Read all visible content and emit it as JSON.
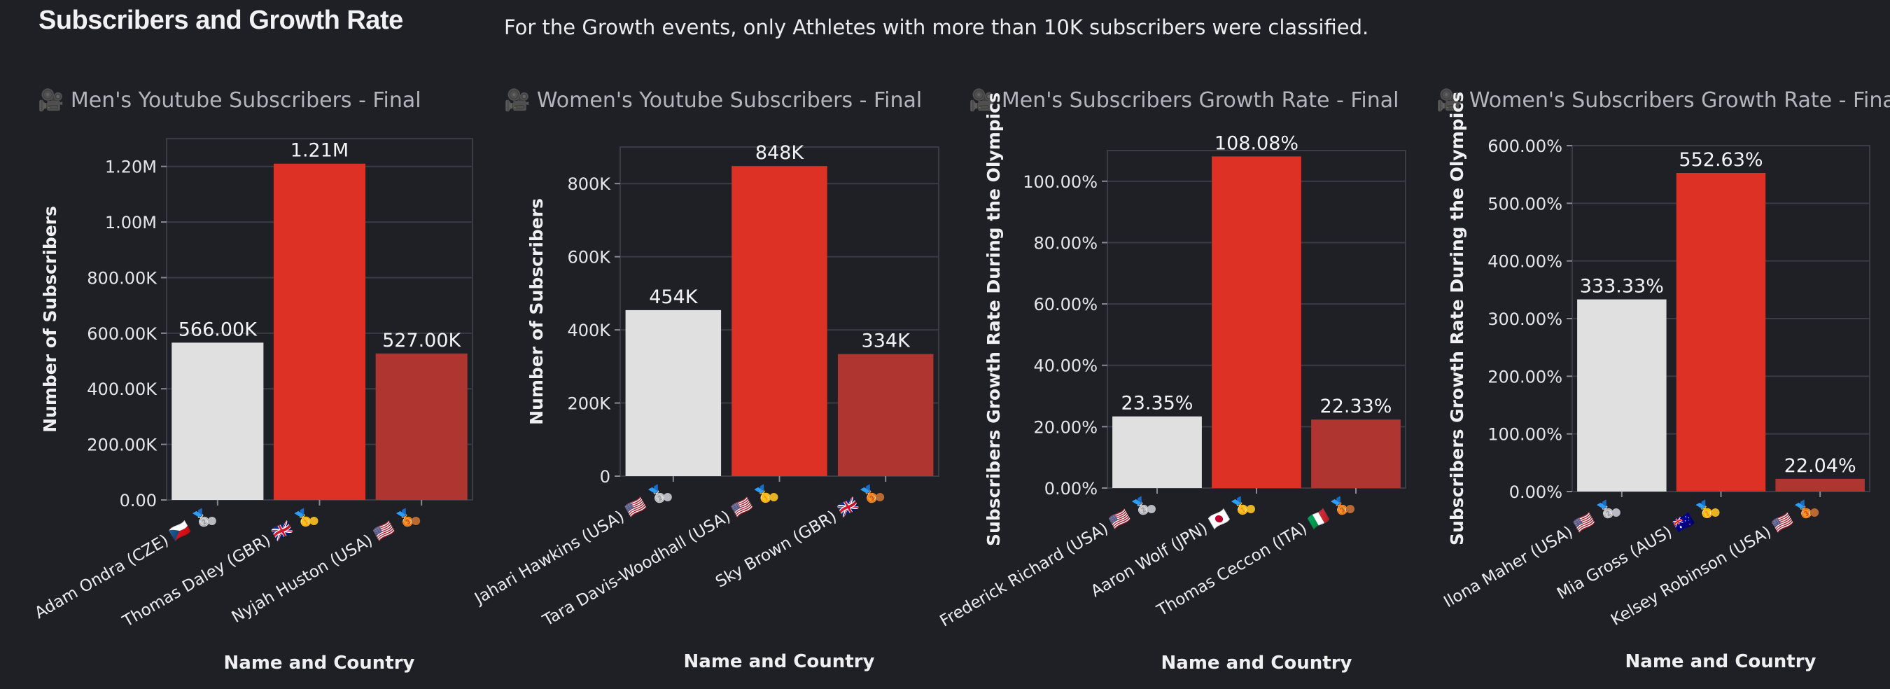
{
  "page": {
    "title": "Subscribers and Growth Rate",
    "note": "For the Growth events, only Athletes with more than 10K subscribers were classified."
  },
  "icons": {
    "panel_icon": "movie-camera-icon",
    "gold": "gold-medal-icon",
    "silver": "silver-medal-icon",
    "bronze": "bronze-medal-icon"
  },
  "colors": {
    "background": "#1f1f26",
    "silver": "#e0e0e0",
    "gold": "#dd3126",
    "bronze": "#ae3530",
    "grid": "#3b3b46"
  },
  "panels": [
    {
      "title": "🎥 Men's Youtube Subscribers - Final"
    },
    {
      "title": "🎥 Women's Youtube Subscribers - Final"
    },
    {
      "title": "🎥 Men's Subscribers Growth Rate - Final"
    },
    {
      "title": "🎥 Women's Subscribers Growth Rate - Final"
    }
  ],
  "chart_data": [
    {
      "type": "bar",
      "title": "Men's Youtube Subscribers - Final",
      "xlabel": "Name and Country",
      "ylabel": "Number of Subscribers",
      "ylim": [
        0,
        1300000
      ],
      "yticks": [
        0,
        200000,
        400000,
        600000,
        800000,
        1000000,
        1200000
      ],
      "ytick_labels": [
        "0.00",
        "200.00K",
        "400.00K",
        "600.00K",
        "800.00K",
        "1.00M",
        "1.20M"
      ],
      "categories": [
        "Adam Ondra (CZE) 🇨🇿 🥈",
        "Thomas Daley (GBR) 🇬🇧 🥇",
        "Nyjah Huston (USA) 🇺🇸 🥉"
      ],
      "values": [
        566000,
        1210000,
        527000
      ],
      "value_labels": [
        "566.00K",
        "1.21M",
        "527.00K"
      ],
      "medals": [
        "silver",
        "gold",
        "bronze"
      ],
      "grid": true
    },
    {
      "type": "bar",
      "title": "Women's Youtube Subscribers - Final",
      "xlabel": "Name and Country",
      "ylabel": "Number of Subscribers",
      "ylim": [
        0,
        900000
      ],
      "yticks": [
        0,
        200000,
        400000,
        600000,
        800000
      ],
      "ytick_labels": [
        "0",
        "200K",
        "400K",
        "600K",
        "800K"
      ],
      "categories": [
        "Jahari Hawkins (USA) 🇺🇸 🥈",
        "Tara Davis-Woodhall (USA) 🇺🇸 🥇",
        "Sky Brown (GBR) 🇬🇧 🥉"
      ],
      "values": [
        454000,
        848000,
        334000
      ],
      "value_labels": [
        "454K",
        "848K",
        "334K"
      ],
      "medals": [
        "silver",
        "gold",
        "bronze"
      ],
      "grid": true
    },
    {
      "type": "bar",
      "title": "Men's Subscribers Growth Rate - Final",
      "xlabel": "Name and Country",
      "ylabel": "Subscribers Growth Rate During the Olympics",
      "ylim": [
        0,
        110
      ],
      "yticks": [
        0,
        20,
        40,
        60,
        80,
        100
      ],
      "ytick_labels": [
        "0.00%",
        "20.00%",
        "40.00%",
        "60.00%",
        "80.00%",
        "100.00%"
      ],
      "categories": [
        "Frederick Richard (USA) 🇺🇸 🥈",
        "Aaron Wolf (JPN) 🇯🇵 🥇",
        "Thomas Ceccon (ITA) 🇮🇹 🥉"
      ],
      "values": [
        23.35,
        108.08,
        22.33
      ],
      "value_labels": [
        "23.35%",
        "108.08%",
        "22.33%"
      ],
      "medals": [
        "silver",
        "gold",
        "bronze"
      ],
      "grid": true
    },
    {
      "type": "bar",
      "title": "Women's Subscribers Growth Rate - Final",
      "xlabel": "Name and Country",
      "ylabel": "Subscribers Growth Rate During the Olympics",
      "ylim": [
        0,
        600
      ],
      "yticks": [
        0,
        100,
        200,
        300,
        400,
        500,
        600
      ],
      "ytick_labels": [
        "0.00%",
        "100.00%",
        "200.00%",
        "300.00%",
        "400.00%",
        "500.00%",
        "600.00%"
      ],
      "categories": [
        "Ilona Maher (USA) 🇺🇸 🥈",
        "Mia Gross (AUS) 🇦🇺 🥇",
        "Kelsey Robinson (USA) 🇺🇸 🥉"
      ],
      "values": [
        333.33,
        552.63,
        22.04
      ],
      "value_labels": [
        "333.33%",
        "552.63%",
        "22.04%"
      ],
      "medals": [
        "silver",
        "gold",
        "bronze"
      ],
      "grid": true
    }
  ]
}
